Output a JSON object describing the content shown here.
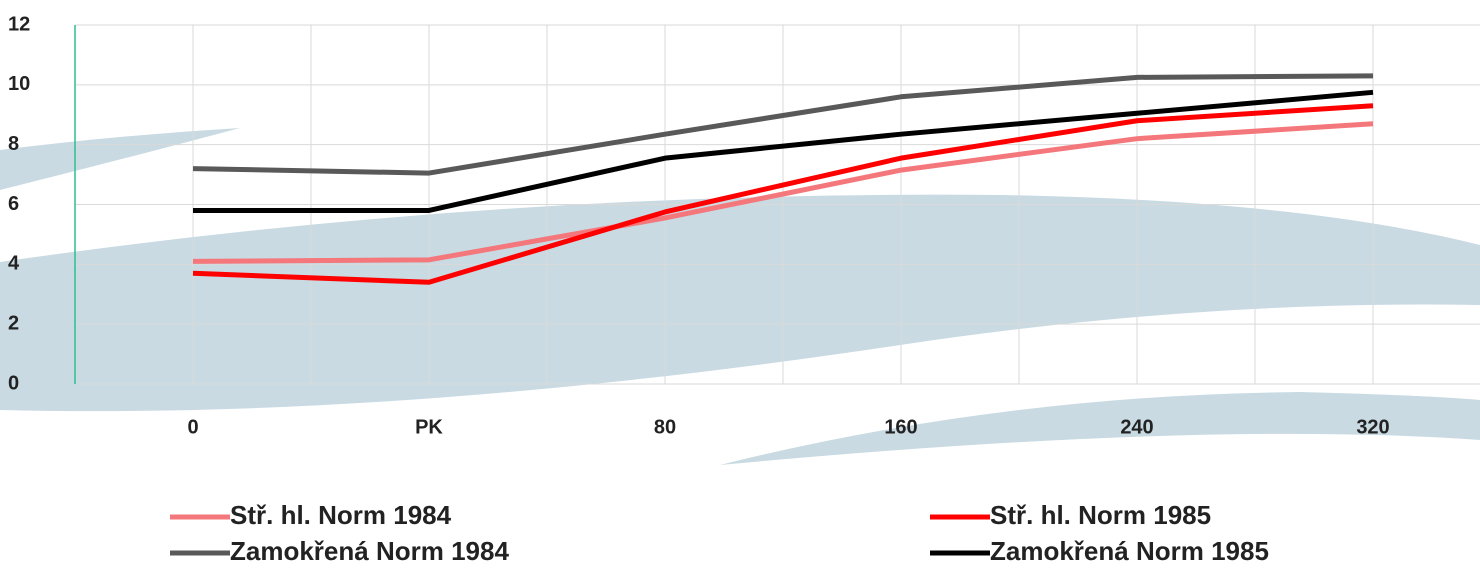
{
  "chart_data": {
    "type": "line",
    "categories": [
      "0",
      "PK",
      "80",
      "160",
      "240",
      "320"
    ],
    "series": [
      {
        "name": "Stř. hl. Norm 1984",
        "color": "#f4777b",
        "values": [
          4.1,
          4.15,
          5.55,
          7.15,
          8.2,
          8.7
        ]
      },
      {
        "name": "Stř. hl. Norm 1985",
        "color": "#ff0000",
        "values": [
          3.7,
          3.4,
          5.75,
          7.55,
          8.8,
          9.3
        ]
      },
      {
        "name": "Zamokřená Norm 1984",
        "color": "#595959",
        "values": [
          7.2,
          7.05,
          8.35,
          9.6,
          10.25,
          10.3
        ]
      },
      {
        "name": "Zamokřená Norm 1985",
        "color": "#000000",
        "values": [
          5.8,
          5.8,
          7.55,
          8.35,
          9.05,
          9.75
        ]
      }
    ],
    "ylim": [
      0,
      12
    ],
    "yticks": [
      0,
      2,
      4,
      6,
      8,
      10,
      12
    ],
    "grid": true
  }
}
